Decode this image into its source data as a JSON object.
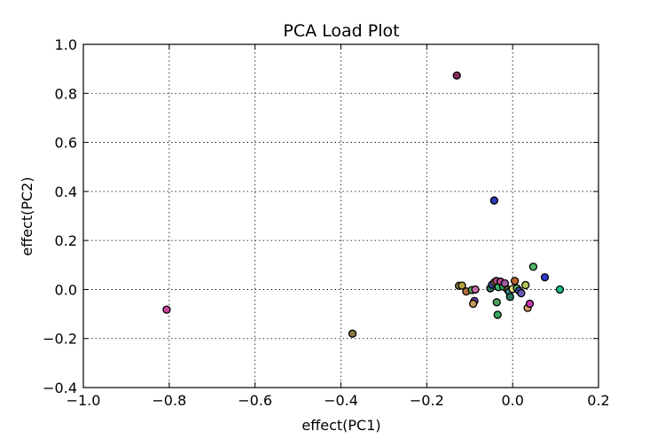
{
  "chart_data": {
    "type": "scatter",
    "title": "PCA Load Plot",
    "xlabel": "effect(PC1)",
    "ylabel": "effect(PC2)",
    "xlim": [
      -1.0,
      0.2
    ],
    "ylim": [
      -0.4,
      1.0
    ],
    "grid": true,
    "grid_style": "dotted",
    "x_ticks": [
      -1.0,
      -0.8,
      -0.6,
      -0.4,
      -0.2,
      0.0,
      0.2
    ],
    "x_tick_labels": [
      "−1.0",
      "−0.8",
      "−0.6",
      "−0.4",
      "−0.2",
      "0.0",
      "0.2"
    ],
    "y_ticks": [
      -0.4,
      -0.2,
      0.0,
      0.2,
      0.4,
      0.6,
      0.8,
      1.0
    ],
    "y_tick_labels": [
      "−0.4",
      "−0.2",
      "0.0",
      "0.2",
      "0.4",
      "0.6",
      "0.8",
      "1.0"
    ],
    "points": [
      {
        "x": -0.13,
        "y": 0.873,
        "color": "#7f2a5e"
      },
      {
        "x": -0.043,
        "y": 0.363,
        "color": "#2a3bb5"
      },
      {
        "x": -0.806,
        "y": -0.082,
        "color": "#c9479e"
      },
      {
        "x": -0.373,
        "y": -0.18,
        "color": "#8a7a3e"
      },
      {
        "x": -0.125,
        "y": 0.015,
        "color": "#8c8c3e"
      },
      {
        "x": -0.118,
        "y": 0.016,
        "color": "#b3a23e"
      },
      {
        "x": -0.108,
        "y": -0.008,
        "color": "#b0713a"
      },
      {
        "x": -0.095,
        "y": -0.002,
        "color": "#5fae5a"
      },
      {
        "x": -0.089,
        "y": -0.047,
        "color": "#7b3fb5"
      },
      {
        "x": -0.092,
        "y": -0.058,
        "color": "#c49a55"
      },
      {
        "x": -0.087,
        "y": 0.0,
        "color": "#c76ba8"
      },
      {
        "x": -0.052,
        "y": 0.005,
        "color": "#2f7a66"
      },
      {
        "x": -0.048,
        "y": 0.02,
        "color": "#3a4ea8"
      },
      {
        "x": -0.042,
        "y": 0.03,
        "color": "#c88a3e"
      },
      {
        "x": -0.038,
        "y": 0.035,
        "color": "#9a4a7e"
      },
      {
        "x": -0.033,
        "y": 0.01,
        "color": "#3cb86a"
      },
      {
        "x": -0.037,
        "y": -0.052,
        "color": "#4c9f5a"
      },
      {
        "x": -0.035,
        "y": -0.103,
        "color": "#3aa860"
      },
      {
        "x": -0.028,
        "y": 0.032,
        "color": "#b84a8e"
      },
      {
        "x": -0.022,
        "y": 0.012,
        "color": "#2ea85a"
      },
      {
        "x": -0.018,
        "y": 0.025,
        "color": "#a65a9e"
      },
      {
        "x": -0.012,
        "y": 0.0,
        "color": "#5a5a2e"
      },
      {
        "x": -0.008,
        "y": -0.01,
        "color": "#3a8a8e"
      },
      {
        "x": -0.006,
        "y": -0.03,
        "color": "#2e7a5e"
      },
      {
        "x": 0.0,
        "y": 0.002,
        "color": "#e6e07a"
      },
      {
        "x": 0.005,
        "y": 0.035,
        "color": "#b8642e"
      },
      {
        "x": 0.01,
        "y": 0.005,
        "color": "#5ab86a"
      },
      {
        "x": 0.015,
        "y": -0.005,
        "color": "#3a4ea8"
      },
      {
        "x": 0.02,
        "y": -0.015,
        "color": "#6a5ab5"
      },
      {
        "x": 0.03,
        "y": 0.018,
        "color": "#b8c45a"
      },
      {
        "x": 0.035,
        "y": -0.075,
        "color": "#d9a06a"
      },
      {
        "x": 0.04,
        "y": -0.058,
        "color": "#c93ab5"
      },
      {
        "x": 0.048,
        "y": 0.093,
        "color": "#4cb86a"
      },
      {
        "x": 0.075,
        "y": 0.05,
        "color": "#2e3ad0"
      },
      {
        "x": 0.11,
        "y": 0.0,
        "color": "#1fc48a"
      }
    ]
  }
}
